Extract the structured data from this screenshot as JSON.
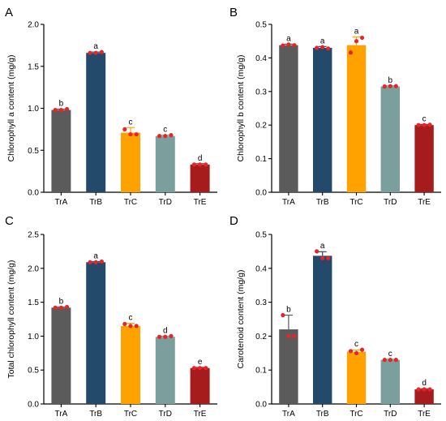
{
  "colors": {
    "TrA": "#5b5b5b",
    "TrB": "#23496b",
    "TrC": "#ffa200",
    "TrD": "#7b9f9c",
    "TrE": "#a61b1c",
    "dot": "#e8232a",
    "axis": "#000000"
  },
  "chart_data": [
    {
      "panel": "A",
      "type": "bar",
      "categories": [
        "TrA",
        "TrB",
        "TrC",
        "TrD",
        "TrE"
      ],
      "values": [
        0.98,
        1.66,
        0.71,
        0.67,
        0.33
      ],
      "errors": [
        0.01,
        0.01,
        0.06,
        0.01,
        0.01
      ],
      "points": [
        [
          0.98,
          0.98,
          0.99
        ],
        [
          1.66,
          1.66,
          1.67
        ],
        [
          0.75,
          0.69,
          0.69
        ],
        [
          0.67,
          0.67,
          0.68
        ],
        [
          0.33,
          0.33,
          0.33
        ]
      ],
      "letters": [
        "b",
        "a",
        "c",
        "c",
        "d"
      ],
      "ylabel": "Chlorophyll a content (mg/g)",
      "ylim": [
        0,
        2.0
      ],
      "yticks": [
        0,
        0.5,
        1.0,
        1.5,
        2.0
      ],
      "ytick_labels": [
        "0.0",
        "0.5",
        "1.0",
        "1.5",
        "2.0"
      ]
    },
    {
      "panel": "B",
      "type": "bar",
      "categories": [
        "TrA",
        "TrB",
        "TrC",
        "TrD",
        "TrE"
      ],
      "values": [
        0.438,
        0.43,
        0.438,
        0.315,
        0.2
      ],
      "errors": [
        0.003,
        0.004,
        0.024,
        0.002,
        0.002
      ],
      "points": [
        [
          0.437,
          0.44,
          0.438
        ],
        [
          0.43,
          0.432,
          0.428
        ],
        [
          0.416,
          0.45,
          0.46
        ],
        [
          0.315,
          0.316,
          0.316
        ],
        [
          0.2,
          0.2,
          0.201
        ]
      ],
      "letters": [
        "a",
        "a",
        "a",
        "b",
        "c"
      ],
      "ylabel": "Chlorophyll b content (mg/g)",
      "ylim": [
        0,
        0.5
      ],
      "yticks": [
        0,
        0.1,
        0.2,
        0.3,
        0.4,
        0.5
      ],
      "ytick_labels": [
        "0.0",
        "0.1",
        "0.2",
        "0.3",
        "0.4",
        "0.5"
      ]
    },
    {
      "panel": "C",
      "type": "bar",
      "categories": [
        "TrA",
        "TrB",
        "TrC",
        "TrD",
        "TrE"
      ],
      "values": [
        1.42,
        2.09,
        1.15,
        0.99,
        0.53
      ],
      "errors": [
        0.01,
        0.01,
        0.04,
        0.01,
        0.01
      ],
      "points": [
        [
          1.42,
          1.42,
          1.43
        ],
        [
          2.09,
          2.09,
          2.1
        ],
        [
          1.18,
          1.15,
          1.15
        ],
        [
          0.99,
          0.99,
          1.0
        ],
        [
          0.53,
          0.53,
          0.53
        ]
      ],
      "letters": [
        "b",
        "a",
        "c",
        "d",
        "e"
      ],
      "ylabel": "Total chlorophyll content (mg/g)",
      "ylim": [
        0,
        2.5
      ],
      "yticks": [
        0,
        0.5,
        1.0,
        1.5,
        2.0,
        2.5
      ],
      "ytick_labels": [
        "0.0",
        "0.5",
        "1.0",
        "1.5",
        "2.0",
        "2.5"
      ]
    },
    {
      "panel": "D",
      "type": "bar",
      "categories": [
        "TrA",
        "TrB",
        "TrC",
        "TrD",
        "TrE"
      ],
      "values": [
        0.22,
        0.437,
        0.154,
        0.13,
        0.043
      ],
      "errors": [
        0.042,
        0.012,
        0.005,
        0.002,
        0.002
      ],
      "points": [
        [
          0.262,
          0.2,
          0.2
        ],
        [
          0.45,
          0.43,
          0.43
        ],
        [
          0.156,
          0.15,
          0.16
        ],
        [
          0.13,
          0.13,
          0.13
        ],
        [
          0.043,
          0.043,
          0.043
        ]
      ],
      "letters": [
        "b",
        "a",
        "c",
        "c",
        "d"
      ],
      "ylabel": "Carotenoid content (mg/g)",
      "ylim": [
        0,
        0.5
      ],
      "yticks": [
        0,
        0.1,
        0.2,
        0.3,
        0.4,
        0.5
      ],
      "ytick_labels": [
        "0.0",
        "0.1",
        "0.2",
        "0.3",
        "0.4",
        "0.5"
      ]
    }
  ]
}
